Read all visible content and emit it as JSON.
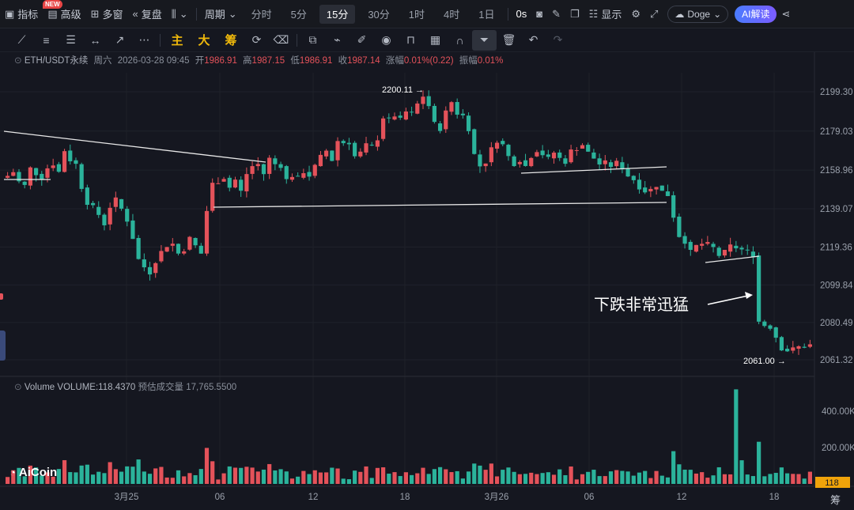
{
  "topbar": {
    "indicator": "指标",
    "new_badge": "NEW",
    "advanced": "高级",
    "multi_window": "多窗",
    "replay": "复盘",
    "period": "周期",
    "timeframes": [
      "分时",
      "5分",
      "15分",
      "30分",
      "1时",
      "4时",
      "1日"
    ],
    "active_timeframe": "15分",
    "countdown": "0s",
    "display": "显示",
    "coin": "Doge",
    "ai_button": "AI解读"
  },
  "drawing_tools": {
    "main": "主",
    "big": "大",
    "chip": "筹"
  },
  "symbol_info": {
    "symbol": "ETH/USDT永续",
    "weekday": "周六",
    "datetime": "2026-03-28 09:45",
    "open_label": "开",
    "open": "1986.91",
    "high_label": "高",
    "high": "1987.15",
    "low_label": "低",
    "low": "1986.91",
    "close_label": "收",
    "close": "1987.14",
    "change_label": "涨幅",
    "change": "0.01%(0.22)",
    "amplitude_label": "振幅",
    "amplitude": "0.01%"
  },
  "volume_info": {
    "name": "Volume",
    "value_label": "VOLUME:118.4370",
    "estimate_label": "预估成交量",
    "estimate": "17,765.5500"
  },
  "logo": "AiCoin",
  "bottom_right": "筹",
  "colors": {
    "up": "#e4525a",
    "down": "#2bb39b",
    "background": "#151720",
    "annotation": "#ffffff"
  },
  "chart_data": {
    "type": "candlestick",
    "price_axis_ticks": [
      "2199.30",
      "2179.03",
      "2158.96",
      "2139.07",
      "2119.36",
      "2099.84",
      "2080.49",
      "2061.32"
    ],
    "volume_axis_ticks": [
      "400.00K",
      "200.00K"
    ],
    "time_axis_ticks": [
      "3月25",
      "06",
      "12",
      "18",
      "3月26",
      "06",
      "12",
      "18"
    ],
    "price_range": [
      2048,
      2210
    ],
    "volume_range": [
      0,
      560000
    ],
    "high_marker": "2200.11",
    "low_marker": "2061.00",
    "current_volume_tag": "118",
    "annotation_text": "下跌非常迅猛",
    "price_path": [
      2156,
      2158,
      2153,
      2151,
      2160,
      2157,
      2155,
      2160,
      2162,
      2158,
      2169,
      2164,
      2162,
      2150,
      2142,
      2140,
      2136,
      2131,
      2140,
      2144,
      2139,
      2133,
      2124,
      2113,
      2109,
      2106,
      2112,
      2117,
      2120,
      2121,
      2116,
      2118,
      2124,
      2120,
      2116,
      2138,
      2152,
      2153,
      2155,
      2150,
      2154,
      2148,
      2157,
      2161,
      2162,
      2157,
      2165,
      2162,
      2161,
      2154,
      2156,
      2155,
      2158,
      2156,
      2161,
      2166,
      2169,
      2164,
      2174,
      2173,
      2173,
      2166,
      2168,
      2172,
      2171,
      2175,
      2186,
      2185,
      2187,
      2185,
      2189,
      2188,
      2193,
      2197,
      2192,
      2183,
      2180,
      2189,
      2194,
      2188,
      2187,
      2180,
      2167,
      2161,
      2163,
      2170,
      2174,
      2172,
      2166,
      2162,
      2164,
      2161,
      2166,
      2169,
      2167,
      2165,
      2168,
      2165,
      2163,
      2169,
      2170,
      2172,
      2168,
      2165,
      2162,
      2163,
      2161,
      2163,
      2160,
      2156,
      2154,
      2150,
      2148,
      2149,
      2151,
      2148,
      2146,
      2135,
      2125,
      2122,
      2117,
      2120,
      2121,
      2121,
      2119,
      2115,
      2117,
      2120,
      2119,
      2118,
      2117,
      2115,
      2081,
      2079,
      2078,
      2073,
      2067,
      2066,
      2067,
      2068,
      2068,
      2069
    ]
  }
}
